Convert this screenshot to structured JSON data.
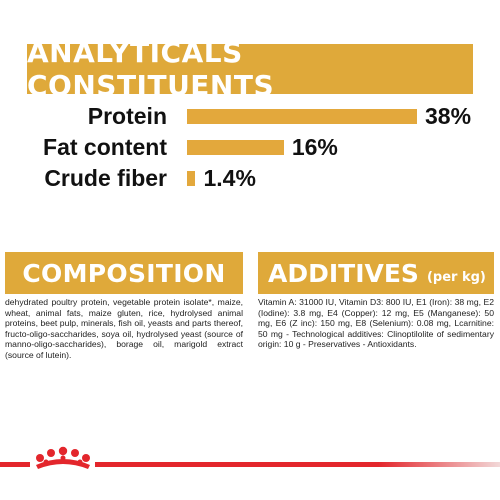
{
  "analytics": {
    "title": "ANALYTICALS CONSTITUENTS",
    "bar_color": "#e3a83c",
    "items": [
      {
        "label": "Protein",
        "value": 38,
        "value_label": "38%"
      },
      {
        "label": "Fat content",
        "value": 16,
        "value_label": "16%"
      },
      {
        "label": "Crude fiber",
        "value": 1.4,
        "value_label": "1.4%"
      }
    ]
  },
  "composition": {
    "title": "COMPOSITION",
    "text": "dehydrated poultry protein, vegetable protein isolate*, maize, wheat, animal fats, maize gluten, rice, hydrolysed animal proteins, beet pulp, minerals, fish oil, yeasts and parts thereof, fructo-oligo-saccharides, soya oil, hydrolysed yeast (source of manno-oligo-saccharides), borage oil, marigold extract (source of lutein)."
  },
  "additives": {
    "title": "ADDITIVES",
    "subtitle": "(per kg)",
    "text": "Vitamin A: 31000 IU, Vitamin D3: 800 IU, E1 (Iron): 38 mg, E2 (Iodine): 3.8 mg, E4 (Copper): 12 mg, E5 (Manganese): 50 mg, E6 (Z inc): 150 mg, E8 (Selenium): 0.08 mg, Lcarnitine: 50 mg - Technological additives: Clinoptilolite of sedimentary origin: 10 g - Preservatives - Antioxidants."
  },
  "footer": {
    "accent_color": "#e3262c",
    "logo_icon": "royal-canin-crown-icon"
  }
}
